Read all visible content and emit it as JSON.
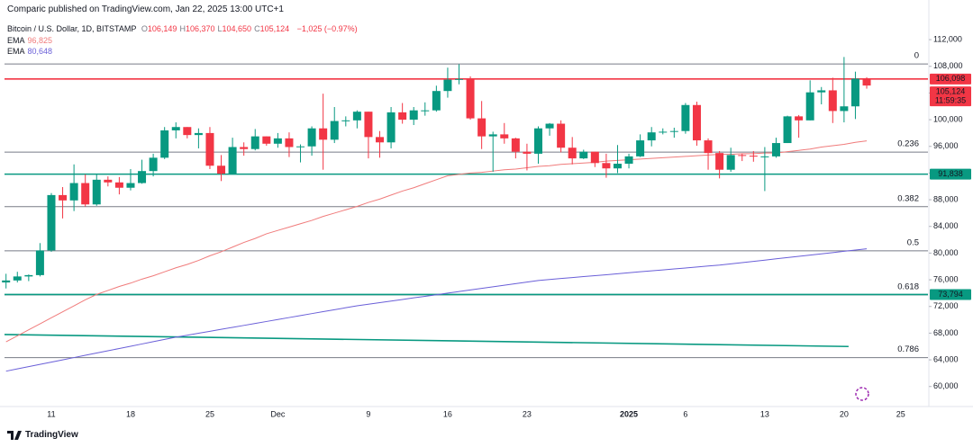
{
  "header": "Comparic published on TradingView.com, Jan 22, 2025 13:00 UTC+1",
  "footer": "TradingView",
  "chart_data": {
    "type": "candlestick",
    "title": "Bitcoin / U.S. Dollar, 1D, BITSTAMP",
    "ohlc_labels": [
      {
        "key": "O",
        "label": "106,149"
      },
      {
        "key": "H",
        "label": "106,370"
      },
      {
        "key": "L",
        "label": "104,650"
      },
      {
        "key": "C",
        "label": "105,124"
      }
    ],
    "change_label": "−1,025 (−0.97%)",
    "up_color": "#089981",
    "down_color": "#f23645",
    "categories": [
      null,
      null,
      null,
      null,
      "11",
      null,
      null,
      null,
      null,
      null,
      null,
      "18",
      null,
      null,
      null,
      null,
      null,
      null,
      "25",
      null,
      null,
      null,
      null,
      null,
      "Dec",
      null,
      null,
      null,
      null,
      null,
      null,
      null,
      "9",
      null,
      null,
      null,
      null,
      null,
      null,
      "16",
      null,
      null,
      null,
      null,
      null,
      null,
      "23",
      null,
      null,
      null,
      null,
      null,
      null,
      null,
      null,
      "2025",
      null,
      null,
      null,
      null,
      "6",
      null,
      null,
      null,
      null,
      null,
      null,
      "13",
      null,
      null,
      null,
      null,
      null,
      null,
      "20",
      null,
      null,
      null,
      null,
      "25"
    ],
    "open": [
      75600,
      75900,
      76500,
      76700,
      80400,
      88700,
      87900,
      90500,
      87300,
      91000,
      90600,
      89800,
      90500,
      92300,
      94300,
      98400,
      98900,
      97700,
      98000,
      93100,
      91900,
      95900,
      95600,
      97500,
      96400,
      97200,
      95900,
      96000,
      98700,
      97000,
      99800,
      99900,
      101200,
      97400,
      96600,
      101100,
      100000,
      101400,
      101400,
      104300,
      106000,
      106100,
      100200,
      97500,
      97800,
      97200,
      95200,
      94900,
      98700,
      99400,
      95800,
      94200,
      95200,
      93500,
      92700,
      93400,
      94500,
      96900,
      98100,
      98200,
      98300,
      102200,
      96900,
      95000,
      92500,
      94700,
      94600,
      94500,
      94500,
      96500,
      100500,
      99900,
      104100,
      104400,
      101300,
      102000,
      106149,
      null,
      null,
      null
    ],
    "high": [
      76900,
      77200,
      76800,
      81500,
      89000,
      89900,
      93300,
      91800,
      91900,
      91500,
      91400,
      92600,
      94000,
      94900,
      98900,
      99600,
      98900,
      98700,
      98900,
      94700,
      97300,
      96600,
      98600,
      97500,
      98000,
      98100,
      96300,
      99000,
      103900,
      101900,
      100500,
      101400,
      101200,
      98300,
      101900,
      102500,
      101900,
      102600,
      105100,
      107800,
      108300,
      106500,
      102800,
      98200,
      99500,
      97300,
      96400,
      99000,
      99500,
      99900,
      97400,
      95500,
      95200,
      94900,
      96200,
      94900,
      97800,
      98900,
      98700,
      98800,
      102500,
      102700,
      97200,
      95300,
      95800,
      94900,
      95300,
      95900,
      97300,
      100600,
      100700,
      105900,
      104900,
      106300,
      109400,
      107200,
      106370,
      null,
      null,
      null
    ],
    "low": [
      74700,
      75600,
      75800,
      76500,
      80200,
      85200,
      86300,
      87000,
      87100,
      90000,
      88800,
      89400,
      90400,
      91500,
      94100,
      97200,
      97200,
      95700,
      92600,
      90800,
      91800,
      94600,
      95400,
      96100,
      95800,
      94400,
      93600,
      94600,
      92500,
      96500,
      99000,
      98700,
      94200,
      94300,
      95700,
      99400,
      99200,
      100600,
      101200,
      103300,
      105300,
      100000,
      95600,
      92200,
      96400,
      94200,
      92400,
      93400,
      97600,
      95100,
      93300,
      94100,
      92900,
      91300,
      92000,
      92700,
      94400,
      96000,
      97800,
      97300,
      97900,
      96100,
      92500,
      91200,
      92200,
      93800,
      93700,
      89300,
      94300,
      96500,
      97300,
      99900,
      102300,
      99500,
      99600,
      100100,
      104650,
      null,
      null,
      null
    ],
    "close": [
      75900,
      76500,
      76700,
      80400,
      88700,
      87900,
      90500,
      87300,
      91000,
      90600,
      89800,
      90500,
      92300,
      94300,
      98400,
      98900,
      97700,
      98000,
      93100,
      91900,
      95900,
      95600,
      97500,
      96400,
      97200,
      95900,
      96000,
      98700,
      97000,
      99800,
      99900,
      101200,
      97400,
      96600,
      101100,
      100000,
      101400,
      101400,
      104300,
      106000,
      106100,
      100200,
      97500,
      97800,
      97200,
      95200,
      94900,
      98700,
      99400,
      95800,
      94200,
      95200,
      93500,
      92700,
      93400,
      94500,
      96900,
      98100,
      98200,
      98300,
      102200,
      96900,
      95000,
      92500,
      94700,
      94600,
      94500,
      94500,
      96500,
      100500,
      99900,
      104100,
      104400,
      101300,
      102000,
      106150,
      105124,
      null,
      null,
      null
    ],
    "series": [
      {
        "name": "EMA",
        "color": "#f07b7b",
        "value_label": "96,825",
        "values": [
          66700,
          67600,
          68500,
          69400,
          70300,
          71200,
          72100,
          73000,
          73800,
          74400,
          75000,
          75500,
          76100,
          76600,
          77200,
          77800,
          78300,
          78900,
          79600,
          80200,
          80900,
          81600,
          82200,
          82900,
          83400,
          83900,
          84400,
          84900,
          85500,
          86000,
          86500,
          87000,
          87600,
          88100,
          88700,
          89300,
          89800,
          90400,
          91000,
          91600,
          91800,
          92000,
          92100,
          92300,
          92500,
          92600,
          92800,
          93000,
          93100,
          93300,
          93400,
          93500,
          93600,
          93800,
          93900,
          94000,
          94100,
          94200,
          94300,
          94400,
          94500,
          94600,
          94700,
          94800,
          94800,
          94900,
          94900,
          95000,
          95000,
          95200,
          95400,
          95600,
          95900,
          96100,
          96300,
          96600,
          96825,
          null,
          null,
          null
        ]
      },
      {
        "name": "EMA",
        "color": "#6a5fd8",
        "value_label": "80,648",
        "values": [
          62300,
          62640,
          62980,
          63320,
          63660,
          64000,
          64340,
          64680,
          65020,
          65360,
          65700,
          66040,
          66380,
          66720,
          67060,
          67400,
          67690,
          67990,
          68280,
          68580,
          68870,
          69160,
          69460,
          69750,
          70040,
          70340,
          70630,
          70930,
          71220,
          71510,
          71810,
          72100,
          72340,
          72580,
          72810,
          73050,
          73290,
          73520,
          73760,
          74000,
          74240,
          74470,
          74710,
          74950,
          75190,
          75420,
          75660,
          75900,
          76040,
          76190,
          76330,
          76480,
          76620,
          76760,
          76910,
          77050,
          77200,
          77340,
          77480,
          77630,
          77770,
          77920,
          78060,
          78200,
          78390,
          78580,
          78760,
          78950,
          79140,
          79330,
          79520,
          79700,
          79890,
          80080,
          80270,
          80460,
          80648,
          null,
          null,
          null
        ]
      }
    ],
    "ylim": [
      57000,
      117000
    ],
    "yticks": [
      {
        "value": 60000,
        "label": "60,000"
      },
      {
        "value": 64000,
        "label": "64,000"
      },
      {
        "value": 68000,
        "label": "68,000"
      },
      {
        "value": 72000,
        "label": "72,000"
      },
      {
        "value": 76000,
        "label": "76,000"
      },
      {
        "value": 80000,
        "label": "80,000"
      },
      {
        "value": 84000,
        "label": "84,000"
      },
      {
        "value": 88000,
        "label": "88,000"
      },
      {
        "value": 92000,
        "label": "92,000"
      },
      {
        "value": 96000,
        "label": "96,000"
      },
      {
        "value": 100000,
        "label": "100,000"
      },
      {
        "value": 104000,
        "label": "104,000"
      },
      {
        "value": 108000,
        "label": "108,000"
      },
      {
        "value": 112000,
        "label": "112,000"
      }
    ],
    "grid": false,
    "levels": [
      {
        "value": 106098,
        "label": "106,098",
        "color": "#f23645"
      },
      {
        "value": 91838,
        "label": "91,838",
        "color": "#089981"
      },
      {
        "value": 73794,
        "label": "73,794",
        "color": "#089981"
      }
    ],
    "price_badge": {
      "value": 105124,
      "label": "105,124",
      "countdown": "11:59:35",
      "color": "#f23645"
    },
    "fib": {
      "color": "#787b86",
      "levels": [
        {
          "label": "0",
          "value": 108350
        },
        {
          "label": "0.236",
          "value": 95134
        },
        {
          "label": "0.382",
          "value": 86958
        },
        {
          "label": "0.5",
          "value": 80350
        },
        {
          "label": "0.618",
          "value": 73742
        },
        {
          "label": "0.786",
          "value": 64334
        }
      ]
    },
    "trendline": {
      "color": "#089981",
      "from": 67800,
      "to": 66000
    }
  }
}
